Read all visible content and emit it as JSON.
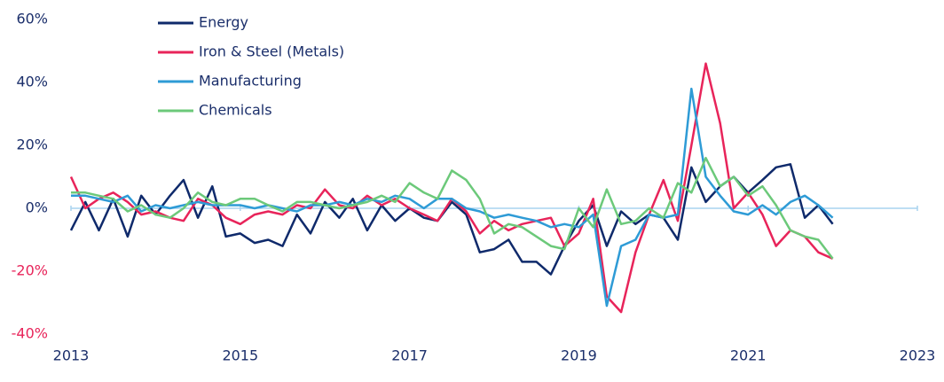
{
  "chart_data": {
    "type": "line",
    "x": [
      2013,
      2013.17,
      2013.33,
      2013.5,
      2013.67,
      2013.83,
      2014,
      2014.17,
      2014.33,
      2014.5,
      2014.67,
      2014.83,
      2015,
      2015.17,
      2015.33,
      2015.5,
      2015.67,
      2015.83,
      2016,
      2016.17,
      2016.33,
      2016.5,
      2016.67,
      2016.83,
      2017,
      2017.17,
      2017.33,
      2017.5,
      2017.67,
      2017.83,
      2018,
      2018.17,
      2018.33,
      2018.5,
      2018.67,
      2018.83,
      2019,
      2019.17,
      2019.33,
      2019.5,
      2019.67,
      2019.83,
      2020,
      2020.17,
      2020.33,
      2020.5,
      2020.67,
      2020.83,
      2021,
      2021.17,
      2021.33,
      2021.5,
      2021.67,
      2021.83,
      2022
    ],
    "series": [
      {
        "name": "Energy",
        "color": "#0f2a6b",
        "values": [
          -7,
          2,
          -7,
          3,
          -9,
          4,
          -2,
          4,
          9,
          -3,
          7,
          -9,
          -8,
          -11,
          -10,
          -12,
          -2,
          -8,
          2,
          -3,
          3,
          -7,
          1,
          -4,
          0,
          -3,
          -4,
          2,
          -2,
          -14,
          -13,
          -10,
          -17,
          -17,
          -21,
          -12,
          -4,
          1,
          -12,
          -1,
          -5,
          -2,
          -3,
          -10,
          13,
          2,
          7,
          10,
          5,
          9,
          13,
          14,
          -3,
          1,
          -5
        ]
      },
      {
        "name": "Iron & Steel (Metals)",
        "color": "#e8245a",
        "values": [
          10,
          0,
          3,
          5,
          2,
          -2,
          -1,
          -3,
          -4,
          3,
          1,
          -3,
          -5,
          -2,
          -1,
          -2,
          1,
          0,
          6,
          1,
          0,
          4,
          1,
          3,
          0,
          -2,
          -4,
          3,
          -1,
          -8,
          -4,
          -7,
          -5,
          -4,
          -3,
          -12,
          -8,
          3,
          -28,
          -33,
          -14,
          -2,
          9,
          -4,
          20,
          46,
          27,
          0,
          5,
          -2,
          -12,
          -7,
          -9,
          -14,
          -16
        ]
      },
      {
        "name": "Manufacturing",
        "color": "#2e9bd6",
        "values": [
          4,
          4,
          3,
          2,
          4,
          -1,
          1,
          0,
          1,
          2,
          1,
          1,
          1,
          0,
          1,
          0,
          -1,
          1,
          1,
          2,
          1,
          3,
          2,
          4,
          3,
          0,
          3,
          3,
          0,
          -1,
          -3,
          -2,
          -3,
          -4,
          -6,
          -5,
          -6,
          -2,
          -31,
          -12,
          -10,
          -2,
          -3,
          -2,
          38,
          10,
          4,
          -1,
          -2,
          1,
          -2,
          2,
          4,
          1,
          -3
        ]
      },
      {
        "name": "Chemicals",
        "color": "#6cc97a",
        "values": [
          5,
          5,
          4,
          3,
          -1,
          1,
          -2,
          -3,
          0,
          5,
          2,
          1,
          3,
          3,
          1,
          -1,
          2,
          2,
          1,
          0,
          1,
          2,
          4,
          2,
          8,
          5,
          3,
          12,
          9,
          3,
          -8,
          -5,
          -6,
          -9,
          -12,
          -13,
          0,
          -6,
          6,
          -5,
          -4,
          0,
          -3,
          8,
          5,
          16,
          7,
          10,
          4,
          7,
          1,
          -7,
          -9,
          -10,
          -16
        ]
      }
    ],
    "xlim": [
      2013,
      2023
    ],
    "xticks": [
      2013,
      2015,
      2017,
      2019,
      2021,
      2023
    ],
    "ylim": [
      -40,
      60
    ],
    "yticks": [
      {
        "value": -40,
        "label": "-40%"
      },
      {
        "value": -20,
        "label": "-20%"
      },
      {
        "value": 0,
        "label": "0%"
      },
      {
        "value": 20,
        "label": "20%"
      },
      {
        "value": 40,
        "label": "40%"
      },
      {
        "value": 60,
        "label": "60%"
      }
    ],
    "grid": false
  }
}
